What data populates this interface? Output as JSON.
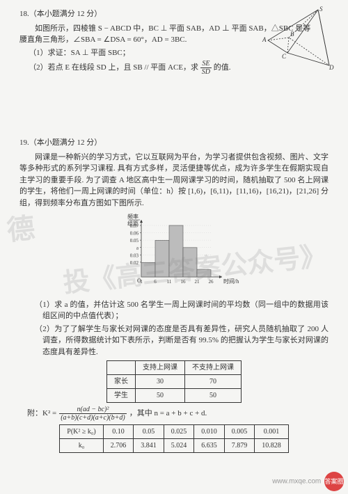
{
  "p18": {
    "heading": "18.（本小题满分 12 分）",
    "line1": "如图所示，四棱锥 S − ABCD 中，BC ⊥ 平面 SAB，AD ⊥ 平面 SAB，△SBC 是等",
    "line2": "腰直角三角形，∠SBA = ∠DSA = 60°，AD = 3BC.",
    "q1": "（1）求证：SA ⊥ 平面 SBC；",
    "q2a": "（2）若点 E 在线段 SD 上，且 SB // 平面 ACE，求",
    "q2b": "的值.",
    "frac_num": "SE",
    "frac_den": "SD"
  },
  "p19": {
    "heading": "19.（本小题满分 12 分）",
    "para1": "网课是一种新兴的学习方式，它以互联网为平台，为学习者提供包含视频、图片、文字等多种形式的系列学习课程. 具有方式多样，灵活便捷等优点，成为许多学生在假期实现自主学习的重要手段. 为了调查 A 地区高中生一周网课学习的时间，随机抽取了 500 名上网课的学生，将他们一周上网课的时间（单位：h）按 [1,6)，[6,11)，[11,16)，[16,21)，[21,26] 分组，得到频率分布直方图如下图所示.",
    "q1": "（1）求 a 的值，并估计这 500 名学生一周上网课时间的平均数（同一组中的数据用该组区间的中点值代表）；",
    "q2": "（2）为了了解学生与家长对网课的态度是否具有差异性，研究人员随机抽取了 200 人调查，所得数据统计如下表所示，判断是否有 99.5% 的把握认为学生与家长对网课的态度具有差异性.",
    "chart": {
      "ylabel_top": "频率",
      "ylabel_bot": "组距",
      "yticks": [
        "0.07",
        "0.06",
        "0.05",
        "a",
        "0.03",
        "0.02"
      ],
      "xticks": [
        "1",
        "6",
        "11",
        "16",
        "21",
        "26"
      ],
      "xlabel": "时间/h",
      "bar_heights_rel": [
        0.28,
        0.71,
        1.0,
        0.57,
        0.14
      ],
      "bar_color": "#bcbcbc",
      "bar_border": "#555",
      "bg": "#f5f5f3",
      "axis_color": "#333"
    },
    "table1": {
      "cols": [
        "",
        "支持上网课",
        "不支持上网课"
      ],
      "rows": [
        [
          "家长",
          "30",
          "70"
        ],
        [
          "学生",
          "50",
          "50"
        ]
      ]
    },
    "formula_prefix": "附：K² =",
    "formula_num": "n(ad − bc)²",
    "formula_den": "(a+b)(c+d)(a+c)(b+d)",
    "formula_suffix": "，其中 n = a + b + c + d.",
    "table2": {
      "r1": [
        "P(K² ≥ k₀)",
        "0.10",
        "0.05",
        "0.025",
        "0.010",
        "0.005",
        "0.001"
      ],
      "r2": [
        "k₀",
        "2.706",
        "3.841",
        "5.024",
        "6.635",
        "7.879",
        "10.828"
      ]
    }
  },
  "watermark1": "德",
  "watermark2": "投《高三答案公众号》",
  "corner_text": "www.mxqe.com",
  "corner_logo": "答案圈"
}
